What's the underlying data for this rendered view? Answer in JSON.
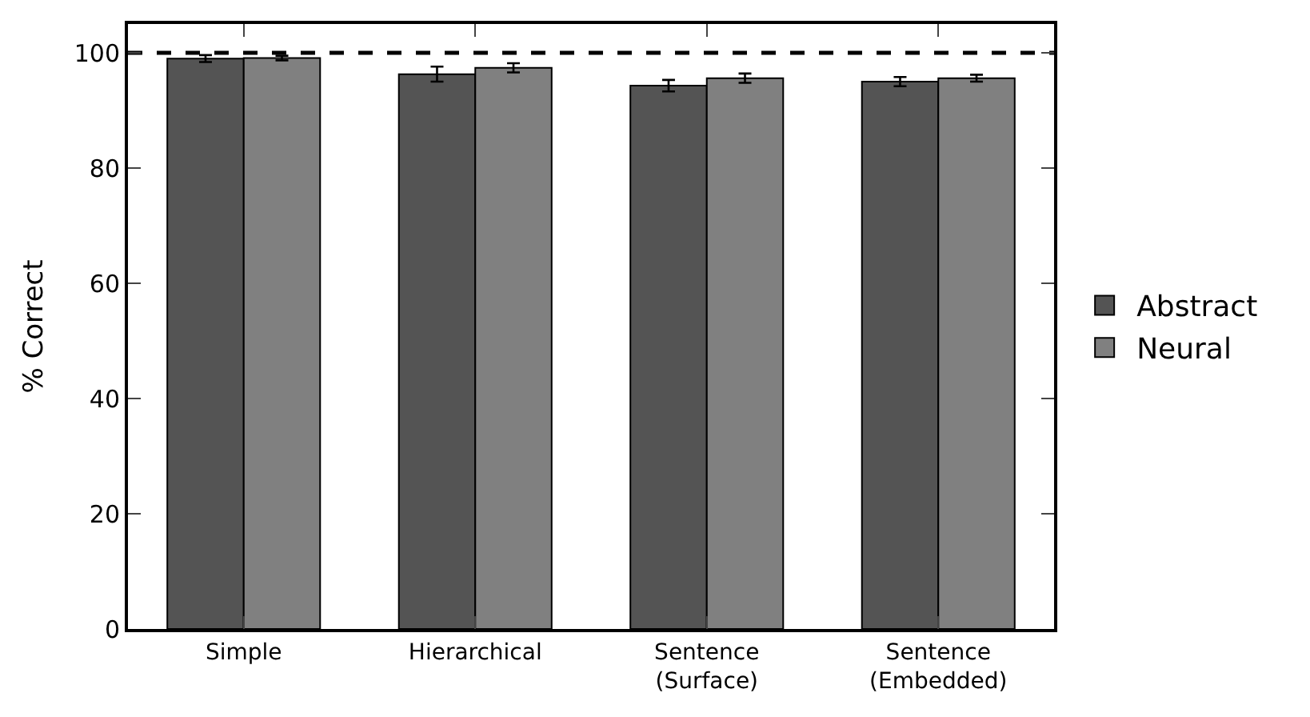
{
  "chart_data": {
    "type": "bar",
    "ylabel": "% Correct",
    "categories": [
      "Simple",
      "Hierarchical",
      "Sentence\n(Surface)",
      "Sentence\n(Embedded)"
    ],
    "series": [
      {
        "name": "Abstract",
        "color": "#545454",
        "values": [
          99.0,
          96.3,
          94.3,
          95.0
        ],
        "errors": [
          0.6,
          1.3,
          1.0,
          0.8
        ]
      },
      {
        "name": "Neural",
        "color": "#808080",
        "values": [
          99.1,
          97.4,
          95.6,
          95.6
        ],
        "errors": [
          0.4,
          0.8,
          0.8,
          0.6
        ]
      }
    ],
    "ylim": [
      0,
      105
    ],
    "yticks": [
      0,
      20,
      40,
      60,
      80,
      100
    ],
    "ref_lines": [
      {
        "axis": "y",
        "value": 100,
        "label": null,
        "color": "#000000",
        "line_style": "dashed"
      }
    ],
    "grid": false,
    "legend": "right"
  }
}
